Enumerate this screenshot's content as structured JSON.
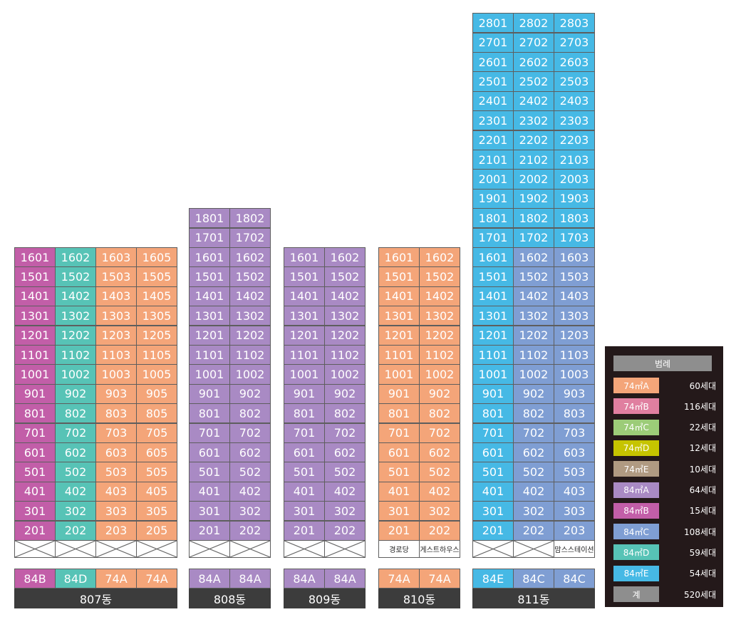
{
  "colors": {
    "74A": "#f4a579",
    "74B": "#e07fa0",
    "74C": "#9ccc78",
    "74D": "#c6c400",
    "74E": "#b09a82",
    "84A": "#a98ac4",
    "84B": "#c25ea8",
    "84C": "#7f9ed3",
    "84D": "#57c3b6",
    "84E": "#46b9e5",
    "total": "#8e8e8e"
  },
  "buildings": [
    {
      "name": "807동",
      "floors": 16,
      "columns": [
        {
          "suffix": "01",
          "type": "84B",
          "label": "84B"
        },
        {
          "suffix": "02",
          "type": "84D",
          "label": "84D"
        },
        {
          "suffix": "03",
          "type": "74A",
          "label": "74A"
        },
        {
          "suffix": "05",
          "type": "74A",
          "label": "74A"
        }
      ],
      "bottom": [
        "",
        "",
        "",
        ""
      ]
    },
    {
      "name": "808동",
      "floors": 18,
      "columns": [
        {
          "suffix": "01",
          "type": "84A",
          "label": "84A"
        },
        {
          "suffix": "02",
          "type": "84A",
          "label": "84A"
        }
      ],
      "bottom": [
        "",
        ""
      ]
    },
    {
      "name": "809동",
      "floors": 16,
      "columns": [
        {
          "suffix": "01",
          "type": "84A",
          "label": "84A"
        },
        {
          "suffix": "02",
          "type": "84A",
          "label": "84A"
        }
      ],
      "bottom": [
        "",
        ""
      ]
    },
    {
      "name": "810동",
      "floors": 16,
      "columns": [
        {
          "suffix": "01",
          "type": "74A",
          "label": "74A"
        },
        {
          "suffix": "02",
          "type": "74A",
          "label": "74A"
        }
      ],
      "bottom": [
        "경로당",
        "게스트하우스"
      ]
    },
    {
      "name": "811동",
      "floors": 28,
      "blue_from_floor": 17,
      "columns": [
        {
          "suffix": "01",
          "type": "84E",
          "label": "84E"
        },
        {
          "suffix": "02",
          "type": "84C",
          "label": "84C"
        },
        {
          "suffix": "03",
          "type": "84C",
          "label": "84C"
        }
      ],
      "bottom": [
        "",
        "",
        "맘스스테이션"
      ]
    }
  ],
  "legend": {
    "title": "범례",
    "items": [
      {
        "key": "74A",
        "label": "74㎡A",
        "count": "60세대"
      },
      {
        "key": "74B",
        "label": "74㎡B",
        "count": "116세대"
      },
      {
        "key": "74C",
        "label": "74㎡C",
        "count": "22세대"
      },
      {
        "key": "74D",
        "label": "74㎡D",
        "count": "12세대"
      },
      {
        "key": "74E",
        "label": "74㎡E",
        "count": "10세대"
      },
      {
        "key": "84A",
        "label": "84㎡A",
        "count": "64세대"
      },
      {
        "key": "84B",
        "label": "84㎡B",
        "count": "15세대"
      },
      {
        "key": "84C",
        "label": "84㎡C",
        "count": "108세대"
      },
      {
        "key": "84D",
        "label": "84㎡D",
        "count": "59세대"
      },
      {
        "key": "84E",
        "label": "84㎡E",
        "count": "54세대"
      },
      {
        "key": "total",
        "label": "계",
        "count": "520세대"
      }
    ]
  }
}
